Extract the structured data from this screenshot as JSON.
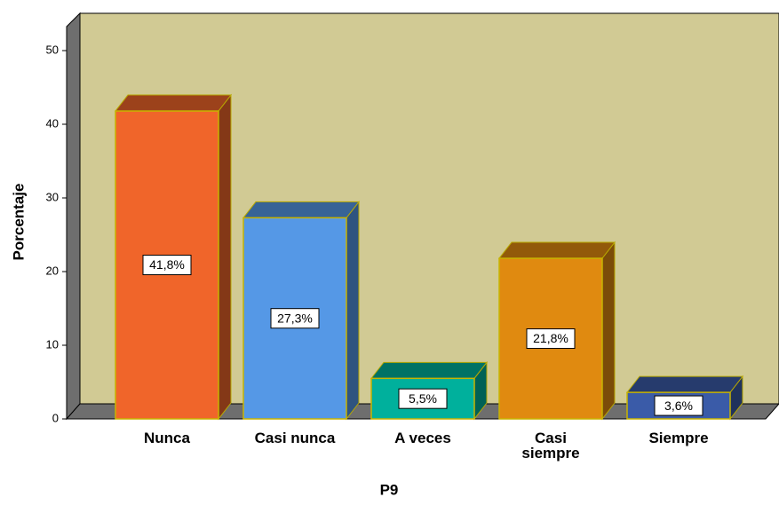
{
  "chart_data": {
    "type": "bar",
    "xlabel": "P9",
    "ylabel": "Porcentaje",
    "categories": [
      "Nunca",
      "Casi nunca",
      "A veces",
      "Casi\nsiempre",
      "Siempre"
    ],
    "values": [
      41.8,
      27.3,
      5.5,
      21.8,
      3.6
    ],
    "value_labels": [
      "41,8%",
      "27,3%",
      "5,5%",
      "21,8%",
      "3,6%"
    ],
    "colors": [
      "#f0652a",
      "#5598e6",
      "#00b09c",
      "#e08a10",
      "#3a5ba8"
    ],
    "ylim": [
      0,
      50
    ],
    "yticks": [
      0,
      10,
      20,
      30,
      40,
      50
    ]
  }
}
